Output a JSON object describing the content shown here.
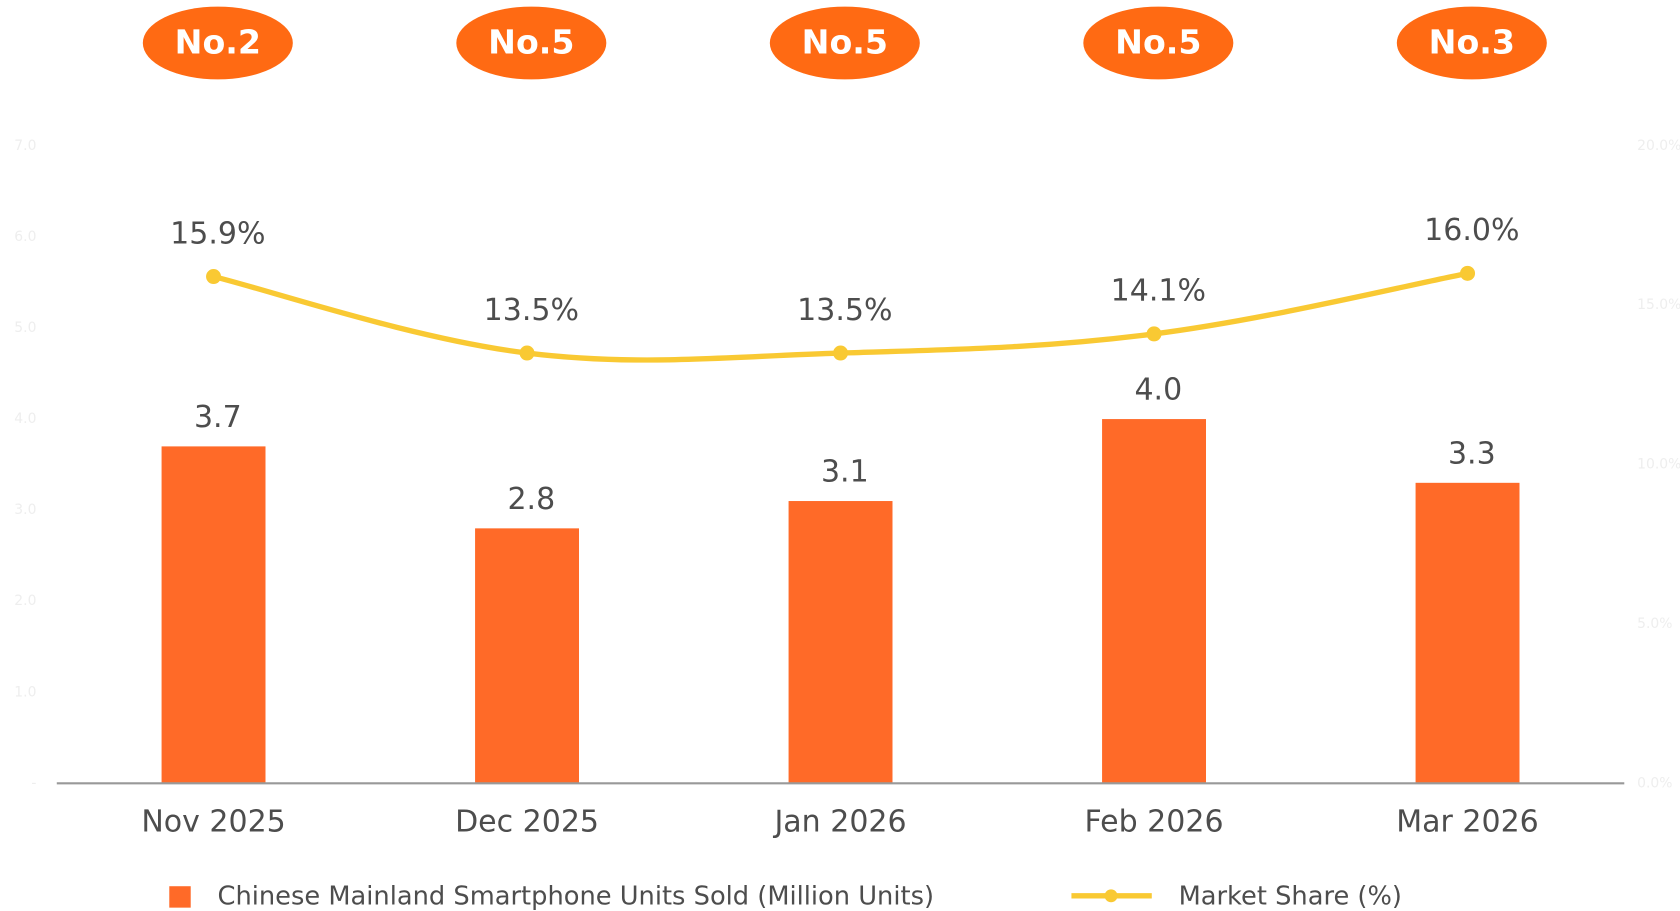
{
  "chart_data": {
    "type": "bar",
    "categories": [
      "Nov 2025",
      "Dec 2025",
      "Jan 2026",
      "Feb 2026",
      "Mar 2026"
    ],
    "ranks": [
      "No.2",
      "No.5",
      "No.5",
      "No.5",
      "No.3"
    ],
    "series": [
      {
        "name": "Chinese Mainland Smartphone Units Sold (Million Units)",
        "type": "bar",
        "color": "#ff6a28",
        "values": [
          3.7,
          2.8,
          3.1,
          4.0,
          3.3
        ],
        "value_labels": [
          "3.7",
          "2.8",
          "3.1",
          "4.0",
          "3.3"
        ]
      },
      {
        "name": "Market Share (%)",
        "type": "line",
        "axis": "y2",
        "color": "#f9c933",
        "values": [
          15.9,
          13.5,
          13.5,
          14.1,
          16.0
        ],
        "value_labels": [
          "15.9%",
          "13.5%",
          "13.5%",
          "14.1%",
          "16.0%"
        ]
      }
    ],
    "ylim": [
      0,
      7
    ],
    "yticks": [
      {
        "value": 0,
        "label": "-"
      },
      {
        "value": 1,
        "label": "1.0"
      },
      {
        "value": 2,
        "label": "2.0"
      },
      {
        "value": 3,
        "label": "3.0"
      },
      {
        "value": 4,
        "label": "4.0"
      },
      {
        "value": 5,
        "label": "5.0"
      },
      {
        "value": 6,
        "label": "6.0"
      },
      {
        "value": 7,
        "label": "7.0"
      }
    ],
    "y2lim": [
      0,
      20
    ],
    "y2ticks": [
      {
        "value": 0,
        "label": "0.0%"
      },
      {
        "value": 5,
        "label": "5.0%"
      },
      {
        "value": 10,
        "label": "10.0%"
      },
      {
        "value": 15,
        "label": "15.0%"
      },
      {
        "value": 20,
        "label": "20.0%"
      }
    ],
    "grid": false
  }
}
